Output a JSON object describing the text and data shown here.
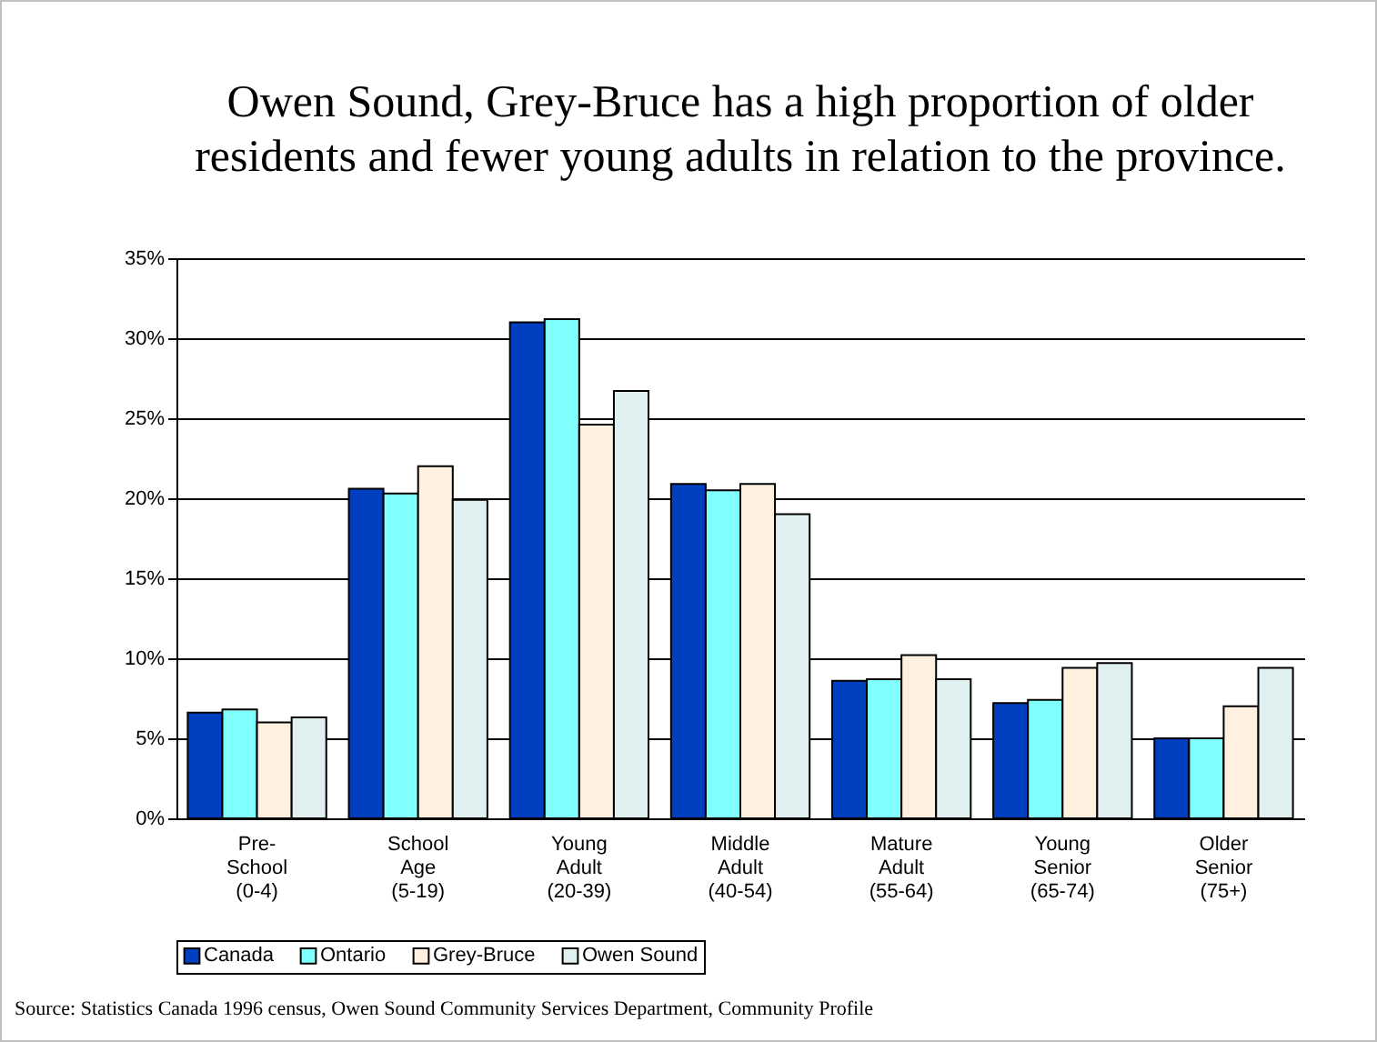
{
  "chart_data": {
    "type": "bar",
    "title": "Owen Sound, Grey-Bruce has a high proportion of older\nresidents and fewer young adults in relation to the province.",
    "categories": [
      "Pre-\nSchool\n(0-4)",
      "School\nAge\n(5-19)",
      "Young\nAdult\n(20-39)",
      "Middle\nAdult\n(40-54)",
      "Mature\nAdult\n(55-64)",
      "Young\nSenior\n(65-74)",
      "Older\nSenior\n(75+)"
    ],
    "series": [
      {
        "name": "Canada",
        "color": "#0040c0",
        "values": [
          6.6,
          20.6,
          31.0,
          20.9,
          8.6,
          7.2,
          5.0
        ]
      },
      {
        "name": "Ontario",
        "color": "#80ffff",
        "values": [
          6.8,
          20.3,
          31.2,
          20.5,
          8.7,
          7.4,
          5.0
        ]
      },
      {
        "name": "Grey-Bruce",
        "color": "#fff0e0",
        "values": [
          6.0,
          22.0,
          24.6,
          20.9,
          10.2,
          9.4,
          7.0
        ]
      },
      {
        "name": "Owen Sound",
        "color": "#e0f0f0",
        "values": [
          6.3,
          19.9,
          26.7,
          19.0,
          8.7,
          9.7,
          9.4
        ]
      }
    ],
    "ylim": [
      0,
      35
    ],
    "yticks": [
      {
        "value": 0,
        "label": "0%"
      },
      {
        "value": 5,
        "label": "5%"
      },
      {
        "value": 10,
        "label": "10%"
      },
      {
        "value": 15,
        "label": "15%"
      },
      {
        "value": 20,
        "label": "20%"
      },
      {
        "value": 25,
        "label": "25%"
      },
      {
        "value": 30,
        "label": "30%"
      },
      {
        "value": 35,
        "label": "35%"
      }
    ],
    "grid": "y",
    "legend": "bottom",
    "annotations": [
      "Source: Statistics Canada 1996 census, Owen Sound Community Services Department, Community Profile"
    ]
  }
}
